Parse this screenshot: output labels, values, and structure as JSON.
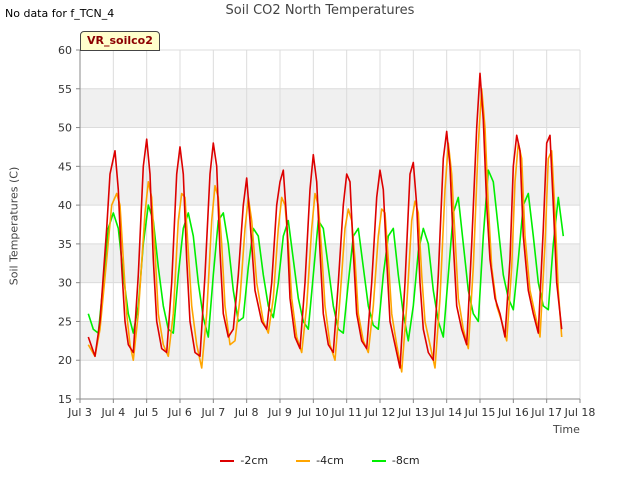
{
  "header": {
    "nodata_text": "No data for f_TCN_4",
    "title": "Soil CO2 North Temperatures"
  },
  "site_badge": "VR_soilco2",
  "chart_data": {
    "type": "line",
    "title": "Soil CO2 North Temperatures",
    "xlabel": "Time",
    "ylabel": "Soil Temperatures (C)",
    "ylim": [
      15,
      60
    ],
    "yticks": [
      15,
      20,
      25,
      30,
      35,
      40,
      45,
      50,
      55,
      60
    ],
    "xlim": [
      3,
      18
    ],
    "xticks": [
      3,
      4,
      5,
      6,
      7,
      8,
      9,
      10,
      11,
      12,
      13,
      14,
      15,
      16,
      17,
      18
    ],
    "xtick_labels": [
      "Jul 3",
      "Jul 4",
      "Jul 5",
      "Jul 6",
      "Jul 7",
      "Jul 8",
      "Jul 9",
      "Jul 10",
      "Jul 11",
      "Jul 12",
      "Jul 13",
      "Jul 14",
      "Jul 15",
      "Jul 16",
      "Jul 17",
      "Jul 18"
    ],
    "grid": true,
    "banded_background": true,
    "legend_position": "bottom",
    "x_unit": "day of July",
    "series": [
      {
        "name": "-2cm",
        "color": "#dd0000",
        "x": [
          3.25,
          3.45,
          3.6,
          3.8,
          3.9,
          4.05,
          4.15,
          4.25,
          4.35,
          4.45,
          4.6,
          4.75,
          4.9,
          5.0,
          5.1,
          5.2,
          5.3,
          5.45,
          5.6,
          5.75,
          5.9,
          6.0,
          6.1,
          6.2,
          6.3,
          6.45,
          6.6,
          6.75,
          6.9,
          7.0,
          7.1,
          7.2,
          7.3,
          7.45,
          7.6,
          7.75,
          7.9,
          8.0,
          8.1,
          8.25,
          8.45,
          8.6,
          8.75,
          8.9,
          9.0,
          9.1,
          9.2,
          9.3,
          9.45,
          9.6,
          9.75,
          9.9,
          10.0,
          10.1,
          10.2,
          10.3,
          10.45,
          10.6,
          10.75,
          10.9,
          11.0,
          11.1,
          11.2,
          11.3,
          11.45,
          11.6,
          11.75,
          11.9,
          12.0,
          12.1,
          12.2,
          12.3,
          12.45,
          12.6,
          12.75,
          12.9,
          13.0,
          13.1,
          13.2,
          13.3,
          13.45,
          13.6,
          13.75,
          13.9,
          14.0,
          14.1,
          14.2,
          14.3,
          14.45,
          14.6,
          14.75,
          14.9,
          15.0,
          15.1,
          15.2,
          15.3,
          15.45,
          15.6,
          15.75,
          15.9,
          16.0,
          16.1,
          16.2,
          16.3,
          16.45,
          16.6,
          16.75,
          16.9,
          17.0,
          17.1,
          17.2,
          17.3,
          17.45
        ],
        "y": [
          23,
          20.5,
          25,
          37,
          44,
          47,
          42,
          32,
          25,
          22,
          21,
          31,
          45,
          48.5,
          44,
          33,
          25,
          21.5,
          21,
          30,
          44,
          47.5,
          44,
          33,
          25,
          21,
          20.5,
          31,
          44,
          48,
          45,
          34,
          26,
          23,
          24,
          31,
          40,
          43.5,
          38,
          29,
          25,
          24,
          30,
          40,
          43,
          44.5,
          38,
          28,
          23,
          21.5,
          30,
          42,
          46.5,
          43,
          34,
          26,
          22,
          21,
          30,
          40,
          44,
          43,
          34,
          26,
          22.5,
          21.5,
          30,
          41,
          44.5,
          42,
          33,
          25,
          22,
          19,
          30,
          44,
          45.5,
          40,
          30,
          24,
          21,
          20,
          31,
          46,
          49.5,
          45,
          35,
          27,
          24,
          22,
          35,
          50,
          57,
          51,
          40,
          33,
          28,
          26,
          23,
          33,
          45,
          49,
          47,
          36,
          29,
          26,
          23.5,
          37,
          48,
          49,
          40,
          30,
          24
        ]
      },
      {
        "name": "-4cm",
        "color": "#ffa500",
        "x": [
          3.25,
          3.45,
          3.6,
          3.8,
          3.95,
          4.1,
          4.2,
          4.3,
          4.4,
          4.5,
          4.6,
          4.75,
          4.95,
          5.05,
          5.15,
          5.25,
          5.35,
          5.5,
          5.65,
          5.8,
          5.95,
          6.05,
          6.15,
          6.25,
          6.35,
          6.5,
          6.65,
          6.8,
          6.95,
          7.05,
          7.15,
          7.25,
          7.35,
          7.5,
          7.65,
          7.8,
          7.95,
          8.05,
          8.15,
          8.3,
          8.5,
          8.65,
          8.8,
          8.95,
          9.05,
          9.15,
          9.25,
          9.35,
          9.5,
          9.65,
          9.8,
          9.95,
          10.05,
          10.15,
          10.25,
          10.35,
          10.5,
          10.65,
          10.8,
          10.95,
          11.05,
          11.15,
          11.25,
          11.35,
          11.5,
          11.65,
          11.8,
          11.95,
          12.05,
          12.15,
          12.25,
          12.35,
          12.5,
          12.65,
          12.8,
          12.95,
          13.05,
          13.15,
          13.25,
          13.35,
          13.5,
          13.65,
          13.8,
          13.95,
          14.05,
          14.15,
          14.25,
          14.35,
          14.5,
          14.65,
          14.8,
          14.95,
          15.05,
          15.15,
          15.25,
          15.35,
          15.5,
          15.65,
          15.8,
          15.95,
          16.05,
          16.15,
          16.25,
          16.35,
          16.5,
          16.65,
          16.8,
          16.95,
          17.05,
          17.15,
          17.25,
          17.35,
          17.45
        ],
        "y": [
          22,
          20.5,
          24,
          33,
          40,
          41.5,
          40,
          33,
          26,
          22,
          20,
          26,
          39,
          43,
          41,
          34,
          26,
          22,
          20.5,
          26,
          38,
          41.5,
          41,
          34,
          27,
          22,
          19,
          26,
          38,
          42.5,
          41,
          35,
          27,
          22,
          22.5,
          28,
          37,
          41,
          38,
          30,
          25,
          23.5,
          28,
          37,
          41,
          40,
          35,
          28,
          23,
          21,
          27,
          37,
          41.5,
          40,
          34,
          27,
          22,
          20,
          28,
          37,
          39.5,
          38,
          33,
          26,
          22.5,
          21,
          27,
          36,
          39.5,
          39,
          33,
          26,
          22,
          18.5,
          27,
          38,
          40.5,
          39,
          31,
          25,
          22,
          19,
          28,
          42,
          48,
          44,
          36,
          28,
          24,
          21.5,
          32,
          48,
          55,
          50,
          40,
          32,
          27,
          25,
          22.5,
          32,
          43,
          48,
          46,
          36,
          29,
          26,
          23,
          35,
          46,
          47,
          39,
          29,
          23
        ]
      },
      {
        "name": "-8cm",
        "color": "#00ee00",
        "x": [
          3.25,
          3.4,
          3.55,
          3.7,
          3.85,
          4.0,
          4.15,
          4.3,
          4.45,
          4.6,
          4.75,
          4.9,
          5.05,
          5.2,
          5.35,
          5.5,
          5.65,
          5.8,
          5.95,
          6.1,
          6.25,
          6.4,
          6.55,
          6.7,
          6.85,
          7.0,
          7.15,
          7.3,
          7.45,
          7.6,
          7.75,
          7.9,
          8.05,
          8.2,
          8.35,
          8.5,
          8.65,
          8.8,
          8.95,
          9.1,
          9.25,
          9.4,
          9.55,
          9.7,
          9.85,
          10.0,
          10.15,
          10.3,
          10.45,
          10.6,
          10.75,
          10.9,
          11.05,
          11.2,
          11.35,
          11.5,
          11.65,
          11.8,
          11.95,
          12.1,
          12.25,
          12.4,
          12.55,
          12.7,
          12.85,
          13.0,
          13.15,
          13.3,
          13.45,
          13.6,
          13.75,
          13.9,
          14.05,
          14.2,
          14.35,
          14.5,
          14.65,
          14.8,
          14.95,
          15.1,
          15.25,
          15.4,
          15.55,
          15.7,
          15.85,
          16.0,
          16.15,
          16.3,
          16.45,
          16.6,
          16.75,
          16.9,
          17.05,
          17.2,
          17.35,
          17.5
        ],
        "y": [
          26,
          24,
          23.5,
          30,
          37,
          39,
          37,
          31,
          26,
          23.5,
          27,
          35,
          40,
          38,
          32,
          27,
          24,
          23.5,
          31,
          37,
          39,
          36,
          30,
          25.5,
          23,
          31,
          38,
          39,
          35,
          29,
          25,
          25.5,
          32,
          37,
          36,
          31,
          27,
          25.5,
          30,
          36,
          38,
          33,
          28,
          25,
          24,
          31,
          38,
          37,
          32,
          27,
          24,
          23.5,
          30,
          36,
          37,
          32,
          27,
          24.5,
          24,
          31,
          36,
          37,
          31,
          26,
          22.5,
          27,
          34,
          37,
          35,
          29,
          25,
          23,
          31,
          39,
          41,
          35,
          29,
          26,
          25,
          36,
          44.5,
          43,
          37,
          31,
          28,
          26.5,
          33,
          40,
          41.5,
          36,
          30,
          27,
          26.5,
          35,
          41,
          36
        ]
      }
    ]
  }
}
